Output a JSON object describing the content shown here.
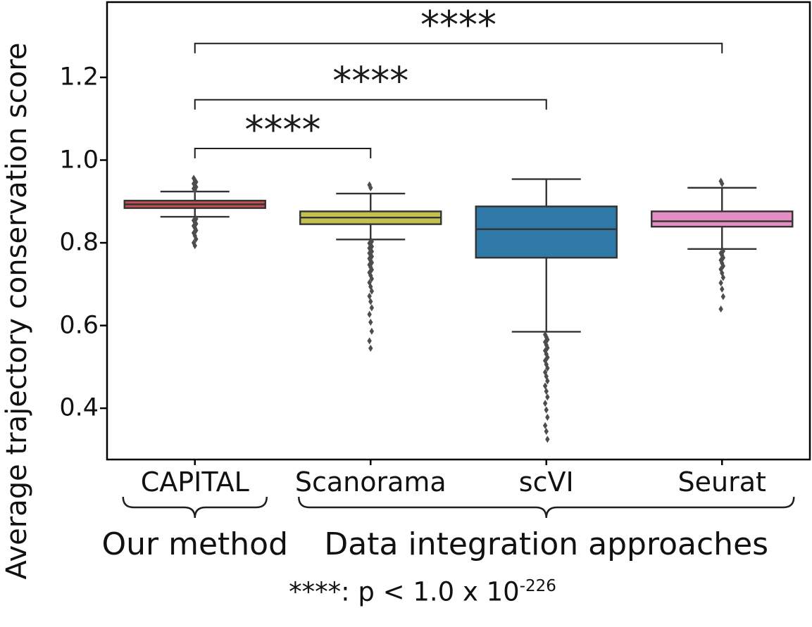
{
  "figure": {
    "ylabel": "Average trajectory conservation score",
    "caption": {
      "text": "****: p < 1.0 x 10",
      "exponent": "-226"
    },
    "groups": [
      {
        "label": "Our method",
        "from": 0,
        "to": 0
      },
      {
        "label": "Data integration approaches",
        "from": 1,
        "to": 3
      }
    ]
  },
  "chart_data": {
    "type": "boxplot",
    "title": "",
    "xlabel": "",
    "ylabel": "Average trajectory conservation score",
    "categories": [
      "CAPITAL",
      "Scanorama",
      "scVI",
      "Seurat"
    ],
    "yticks": [
      0.4,
      0.6,
      0.8,
      1.0,
      1.2
    ],
    "ylim": [
      0.276,
      1.382
    ],
    "grid": false,
    "legend": "none",
    "edge_color": "#333333",
    "flier_color": "#4d4d4d",
    "boxes": [
      {
        "label": "CAPITAL",
        "color": "#c44e52",
        "whislo": 0.863,
        "q1": 0.884,
        "med": 0.893,
        "q3": 0.902,
        "whishi": 0.924,
        "fliers_high": [
          0.956,
          0.951,
          0.947,
          0.943,
          0.939,
          0.935,
          0.931,
          0.928
        ],
        "fliers_low": [
          0.858,
          0.854,
          0.85,
          0.846,
          0.841,
          0.836,
          0.83,
          0.824,
          0.817,
          0.809,
          0.8,
          0.793
        ]
      },
      {
        "label": "Scanorama",
        "color": "#c5c151",
        "whislo": 0.808,
        "q1": 0.845,
        "med": 0.861,
        "q3": 0.876,
        "whishi": 0.919,
        "fliers_high": [
          0.94,
          0.933
        ],
        "fliers_low": [
          0.803,
          0.799,
          0.795,
          0.791,
          0.787,
          0.783,
          0.779,
          0.775,
          0.771,
          0.767,
          0.762,
          0.757,
          0.752,
          0.747,
          0.741,
          0.735,
          0.728,
          0.721,
          0.713,
          0.704,
          0.694,
          0.683,
          0.671,
          0.658,
          0.643,
          0.627,
          0.608,
          0.586,
          0.563,
          0.545
        ]
      },
      {
        "label": "scVI",
        "color": "#2e79a7",
        "whislo": 0.585,
        "q1": 0.764,
        "med": 0.833,
        "q3": 0.888,
        "whishi": 0.954,
        "fliers_high": [],
        "fliers_low": [
          0.578,
          0.572,
          0.566,
          0.56,
          0.553,
          0.546,
          0.539,
          0.531,
          0.523,
          0.515,
          0.506,
          0.497,
          0.487,
          0.477,
          0.466,
          0.454,
          0.441,
          0.427,
          0.412,
          0.396,
          0.378,
          0.358,
          0.344,
          0.325
        ]
      },
      {
        "label": "Seurat",
        "color": "#e58ec3",
        "whislo": 0.785,
        "q1": 0.839,
        "med": 0.852,
        "q3": 0.876,
        "whishi": 0.933,
        "fliers_high": [
          0.949,
          0.943
        ],
        "fliers_low": [
          0.78,
          0.775,
          0.77,
          0.764,
          0.758,
          0.751,
          0.744,
          0.736,
          0.727,
          0.716,
          0.703,
          0.688,
          0.67,
          0.64
        ]
      }
    ],
    "comparisons": [
      {
        "from": "CAPITAL",
        "to": "Scanorama",
        "label": "****",
        "y": 1.028
      },
      {
        "from": "CAPITAL",
        "to": "scVI",
        "label": "****",
        "y": 1.146
      },
      {
        "from": "CAPITAL",
        "to": "Seurat",
        "label": "****",
        "y": 1.282
      }
    ]
  }
}
